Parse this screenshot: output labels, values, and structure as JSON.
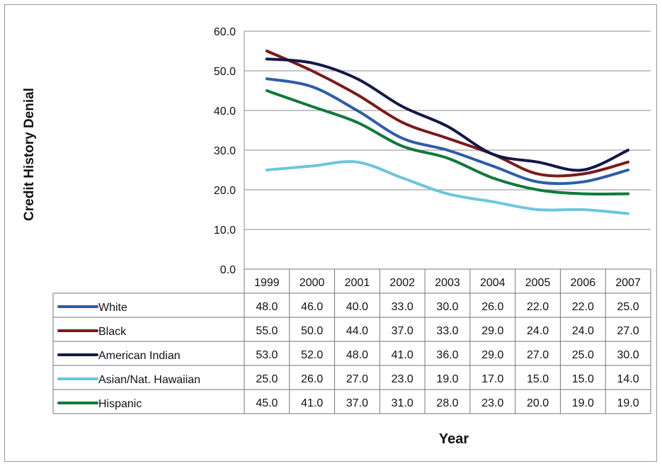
{
  "chart_data": {
    "type": "line",
    "title": "",
    "ylabel": "Credit History Denial",
    "xlabel": "Year",
    "ylim": [
      0,
      60
    ],
    "yticks": [
      "0.0",
      "10.0",
      "20.0",
      "30.0",
      "40.0",
      "50.0",
      "60.0"
    ],
    "grid": true,
    "legend": "data-table-below",
    "categories": [
      "1999",
      "2000",
      "2001",
      "2002",
      "2003",
      "2004",
      "2005",
      "2006",
      "2007"
    ],
    "series": [
      {
        "name": "White",
        "color": "#2e5da8",
        "values": [
          48.0,
          46.0,
          40.0,
          33.0,
          30.0,
          26.0,
          22.0,
          22.0,
          25.0
        ],
        "labels": [
          "48.0",
          "46.0",
          "40.0",
          "33.0",
          "30.0",
          "26.0",
          "22.0",
          "22.0",
          "25.0"
        ]
      },
      {
        "name": "Black",
        "color": "#7a1a1a",
        "values": [
          55.0,
          50.0,
          44.0,
          37.0,
          33.0,
          29.0,
          24.0,
          24.0,
          27.0
        ],
        "labels": [
          "55.0",
          "50.0",
          "44.0",
          "37.0",
          "33.0",
          "29.0",
          "24.0",
          "24.0",
          "27.0"
        ]
      },
      {
        "name": "American Indian",
        "color": "#141848",
        "values": [
          53.0,
          52.0,
          48.0,
          41.0,
          36.0,
          29.0,
          27.0,
          25.0,
          30.0
        ],
        "labels": [
          "53.0",
          "52.0",
          "48.0",
          "41.0",
          "36.0",
          "29.0",
          "27.0",
          "25.0",
          "30.0"
        ]
      },
      {
        "name": "Asian/Nat. Hawaiian",
        "color": "#6cc6dc",
        "values": [
          25.0,
          26.0,
          27.0,
          23.0,
          19.0,
          17.0,
          15.0,
          15.0,
          14.0
        ],
        "labels": [
          "25.0",
          "26.0",
          "27.0",
          "23.0",
          "19.0",
          "17.0",
          "15.0",
          "15.0",
          "14.0"
        ]
      },
      {
        "name": "Hispanic",
        "color": "#0f7a3c",
        "values": [
          45.0,
          41.0,
          37.0,
          31.0,
          28.0,
          23.0,
          20.0,
          19.0,
          19.0
        ],
        "labels": [
          "45.0",
          "41.0",
          "37.0",
          "31.0",
          "28.0",
          "23.0",
          "20.0",
          "19.0",
          "19.0"
        ]
      }
    ]
  }
}
